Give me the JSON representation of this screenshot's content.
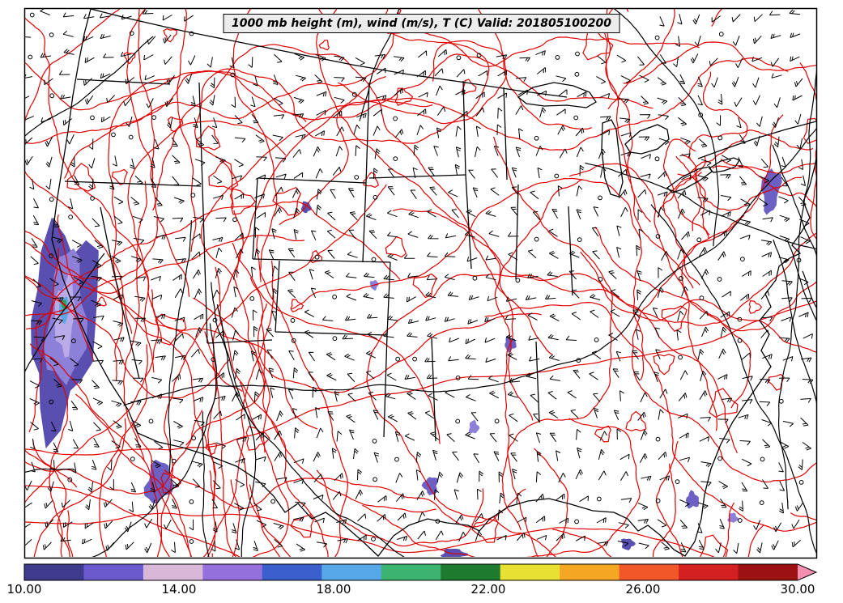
{
  "title": "1000 mb height (m), wind (m/s), T (C) Valid: 201805100200",
  "chart_data": {
    "type": "heatmap",
    "subtype": "meteorological-surface-analysis-map",
    "region": "Continental United States",
    "valid": "201805100200",
    "fields": [
      {
        "name": "1000 mb geopotential height",
        "units": "m",
        "rendering": "black contour lines"
      },
      {
        "name": "wind",
        "units": "m/s",
        "rendering": "black wind barbs, open circles where calm"
      },
      {
        "name": "temperature",
        "units": "C",
        "rendering": "red contour lines with filled color shading for cold areas"
      }
    ],
    "shaded_regions": [
      {
        "location": "California coast and offshore Pacific",
        "approx_values": "10-20, coldest core light blue/green"
      },
      {
        "location": "southern California / northern Baja coast",
        "approx_values": "10-14"
      },
      {
        "location": "New England offshore Atlantic",
        "approx_values": "10-14"
      },
      {
        "location": "scattered small spots: Rockies, Midwest, lower Mississippi valley, Gulf coast, Florida",
        "approx_values": "12-14"
      }
    ],
    "colorbar": {
      "orientation": "horizontal",
      "position": "bottom",
      "range": [
        10,
        30
      ],
      "tick_values": [
        10,
        14,
        18,
        22,
        26,
        30
      ],
      "tick_labels": [
        "10.00",
        "14.00",
        "18.00",
        "22.00",
        "26.00",
        "30.00"
      ],
      "extended_right_arrow": true,
      "colors": [
        "#3e3a8c",
        "#6a5acd",
        "#d8b7d8",
        "#9370db",
        "#3a5fcd",
        "#56a8e8",
        "#3cb371",
        "#1e7a2e",
        "#e8e032",
        "#f5a623",
        "#f2572a",
        "#d42020",
        "#9c1212",
        "#f48fb1"
      ]
    }
  },
  "colors": {
    "temperature_contour": "#e00000",
    "height_contour": "#000000",
    "background": "#ffffff",
    "title_background": "#ececec",
    "shade_dark_purple": "#584fb0",
    "shade_medium_purple": "#6c60c4",
    "shade_light_purple": "#8d80d8",
    "shade_pale_purple": "#b9aae8",
    "shade_blue": "#5aa8e8",
    "shade_green": "#2e9e4f"
  }
}
